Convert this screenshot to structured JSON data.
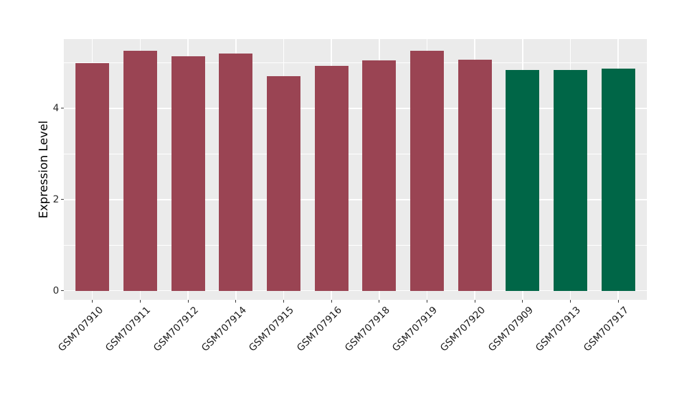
{
  "chart_data": {
    "type": "bar",
    "title": "",
    "xlabel": "",
    "ylabel": "Expression Level",
    "categories": [
      "GSM707910",
      "GSM707911",
      "GSM707912",
      "GSM707914",
      "GSM707915",
      "GSM707916",
      "GSM707918",
      "GSM707919",
      "GSM707920",
      "GSM707909",
      "GSM707913",
      "GSM707917"
    ],
    "values": [
      5.0,
      5.27,
      5.14,
      5.2,
      4.71,
      4.94,
      5.06,
      5.27,
      5.07,
      4.84,
      4.84,
      4.88
    ],
    "bar_colors": [
      "#9A4453",
      "#9A4453",
      "#9A4453",
      "#9A4453",
      "#9A4453",
      "#9A4453",
      "#9A4453",
      "#9A4453",
      "#9A4453",
      "#006647",
      "#006647",
      "#006647"
    ],
    "groups": [
      {
        "name": "maroon-group",
        "color": "#9A4453",
        "categories": [
          "GSM707910",
          "GSM707911",
          "GSM707912",
          "GSM707914",
          "GSM707915",
          "GSM707916",
          "GSM707918",
          "GSM707919",
          "GSM707920"
        ]
      },
      {
        "name": "green-group",
        "color": "#006647",
        "categories": [
          "GSM707909",
          "GSM707913",
          "GSM707917"
        ]
      }
    ],
    "ylim": [
      -0.2,
      5.52
    ],
    "yticks": [
      0,
      2,
      4
    ],
    "yticks_minor": [
      1,
      3,
      5
    ],
    "x_label_rotation_deg": 45,
    "grid": "on",
    "legend": "none",
    "panel_background": "#EBEBEB",
    "grid_color": "#FFFFFF",
    "axis_text_color": "#262626",
    "axis_title_color": "#000000",
    "tick_mark_color": "#333333"
  }
}
